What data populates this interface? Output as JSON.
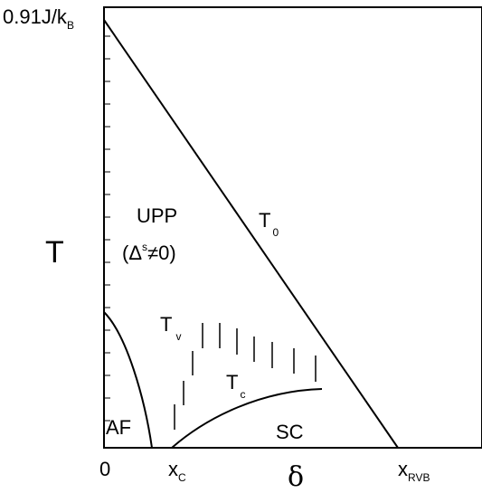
{
  "diagram": {
    "y_top_label": {
      "main": "0.91J/k",
      "sub": "B"
    },
    "y_axis_label": "T",
    "x_axis_label": "δ",
    "x_ticks": [
      {
        "main": "0",
        "sub": ""
      },
      {
        "main": "x",
        "sub": "C"
      },
      {
        "main": "x",
        "sub": "RVB"
      }
    ],
    "region_labels": {
      "upp": "UPP",
      "upp_cond": {
        "open": "(Δ",
        "sup": "s",
        "close": "≠0)"
      },
      "af": "AF",
      "sc": "SC"
    },
    "curve_labels": {
      "t0": {
        "main": "T",
        "sub": "0"
      },
      "tv": {
        "main": "T",
        "sub": "v"
      },
      "tc": {
        "main": "T",
        "sub": "c"
      }
    }
  }
}
